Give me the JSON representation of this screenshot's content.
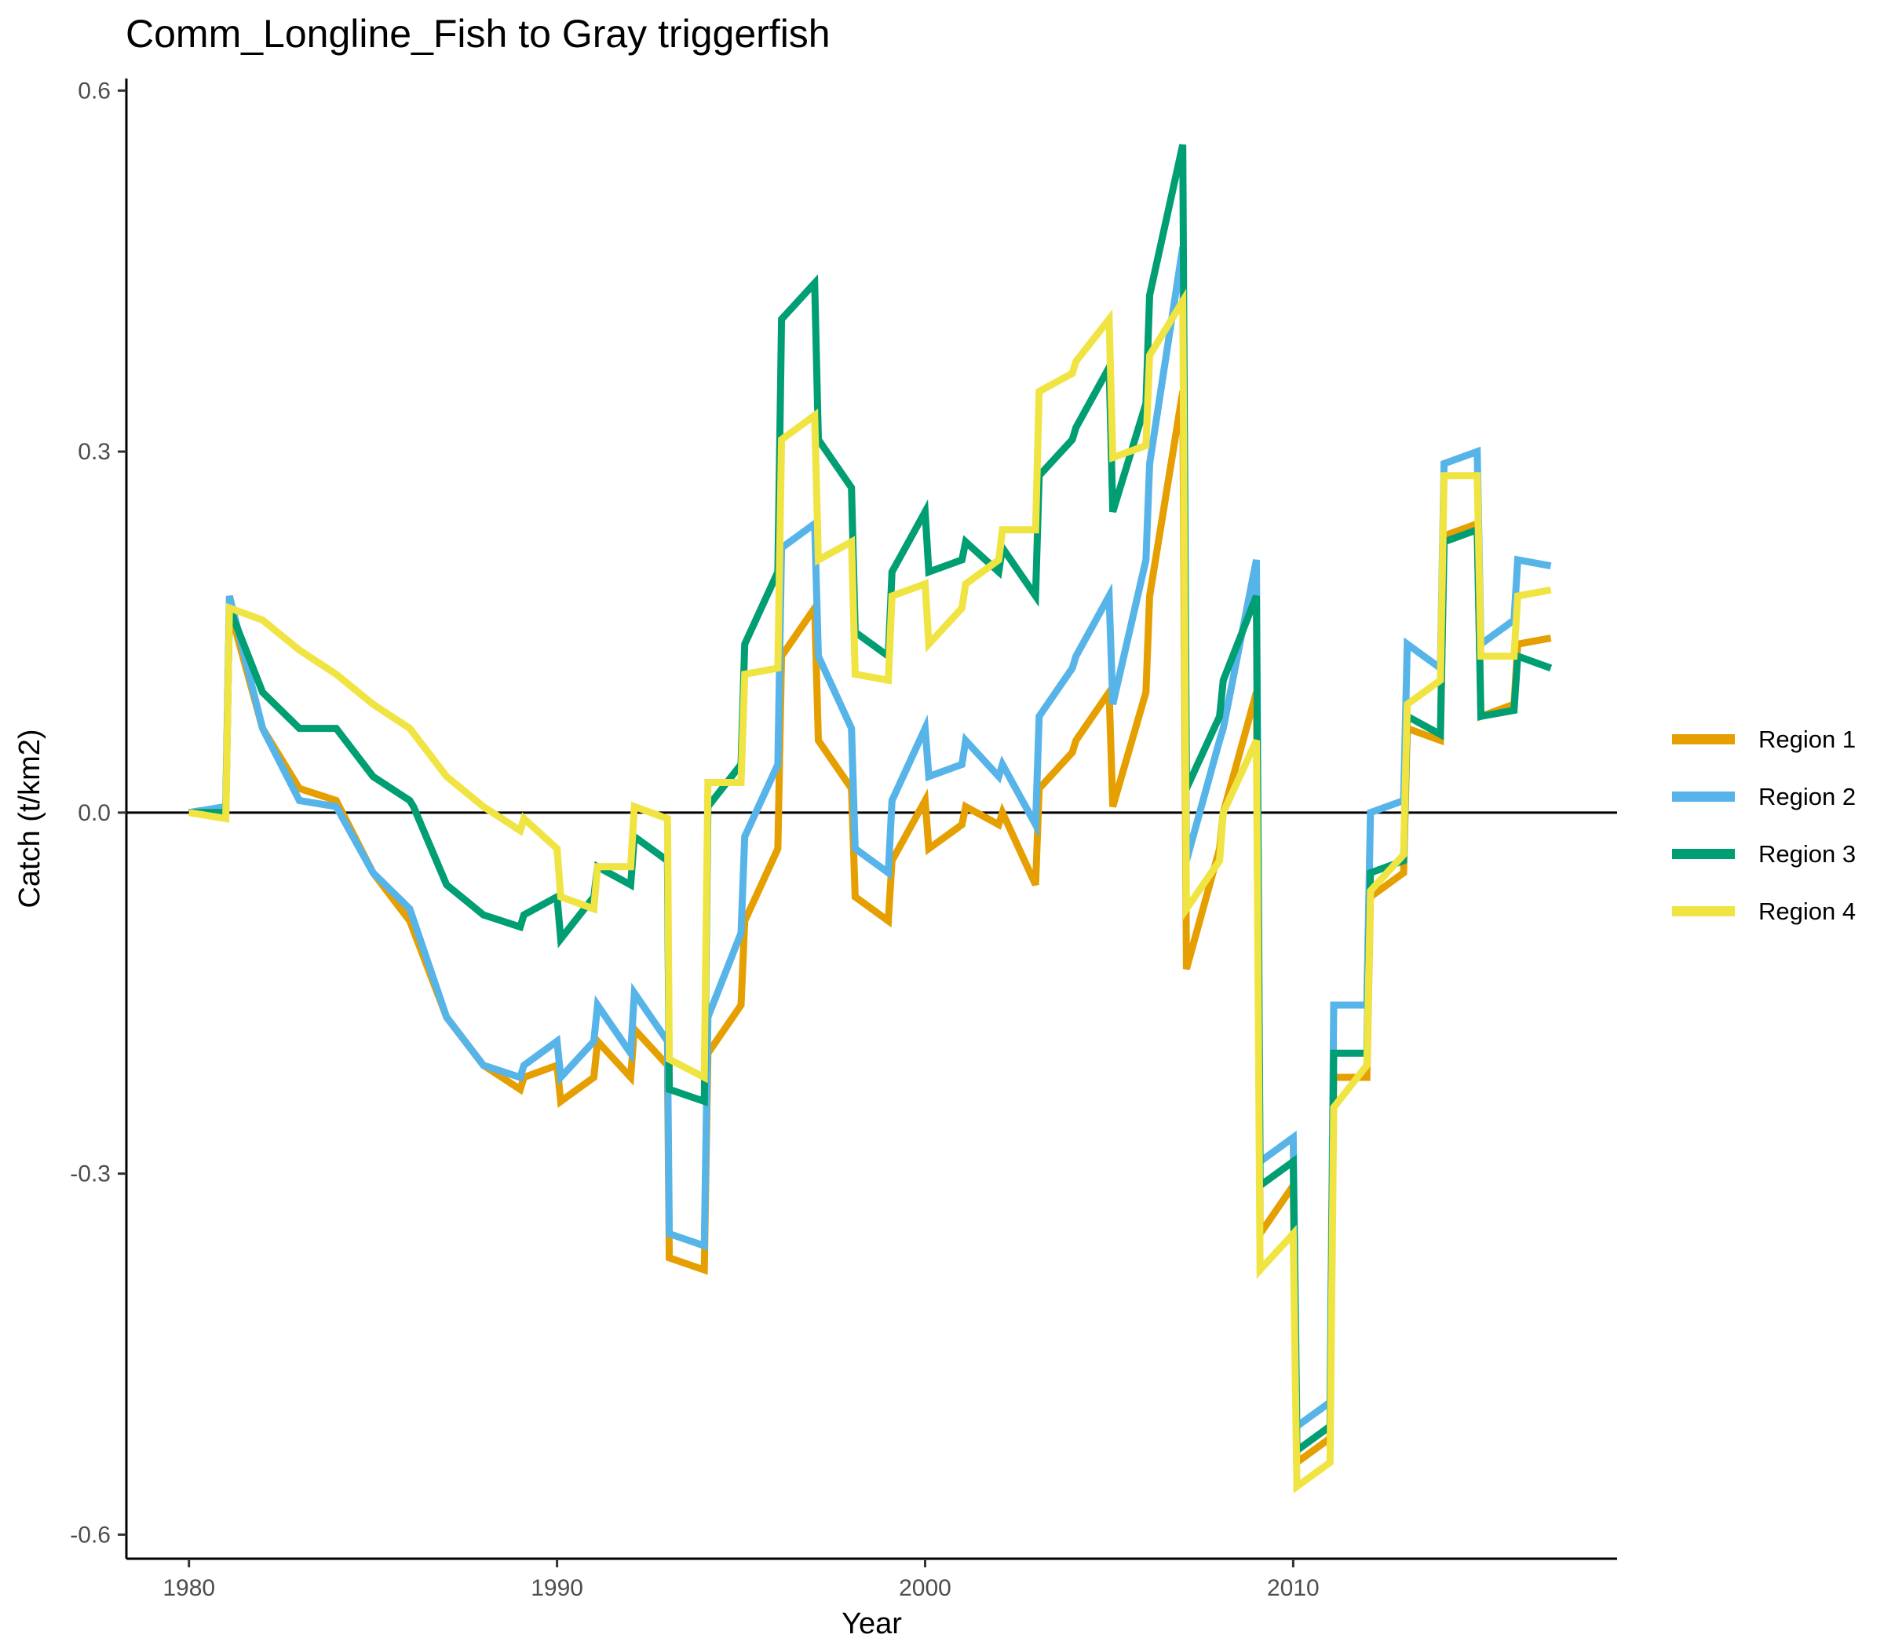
{
  "chart_data": {
    "type": "line",
    "title": "Comm_Longline_Fish to Gray triggerfish",
    "xlabel": "Year",
    "ylabel": "Catch (t/km2)",
    "xlim": [
      1978.3,
      2018.8
    ],
    "ylim": [
      -0.62,
      0.61
    ],
    "xticks": [
      1980,
      1990,
      2000,
      2010
    ],
    "xtick_labels": [
      "1980",
      "1990",
      "2000",
      "2010"
    ],
    "yticks": [
      -0.6,
      -0.3,
      0.0,
      0.3,
      0.6
    ],
    "ytick_labels": [
      "-0.6",
      "-0.3",
      "0.0",
      "0.3",
      "0.6"
    ],
    "zero_line": true,
    "grid": false,
    "legend_position": "right",
    "series": [
      {
        "name": "Region 1",
        "color": "#E69F00",
        "points": [
          [
            1980,
            0
          ],
          [
            1981,
            0
          ],
          [
            1981.1,
            0.17
          ],
          [
            1982,
            0.07
          ],
          [
            1983,
            0.02
          ],
          [
            1984,
            0.01
          ],
          [
            1985,
            -0.05
          ],
          [
            1986,
            -0.09
          ],
          [
            1987,
            -0.17
          ],
          [
            1988,
            -0.21
          ],
          [
            1989,
            -0.23
          ],
          [
            1989.1,
            -0.22
          ],
          [
            1990,
            -0.21
          ],
          [
            1990.1,
            -0.24
          ],
          [
            1991,
            -0.22
          ],
          [
            1991.1,
            -0.19
          ],
          [
            1992,
            -0.22
          ],
          [
            1992.1,
            -0.18
          ],
          [
            1993,
            -0.21
          ],
          [
            1993.05,
            -0.37
          ],
          [
            1994,
            -0.38
          ],
          [
            1994.1,
            -0.2
          ],
          [
            1995,
            -0.16
          ],
          [
            1995.1,
            -0.09
          ],
          [
            1996,
            -0.03
          ],
          [
            1996.1,
            0.13
          ],
          [
            1997,
            0.17
          ],
          [
            1997.1,
            0.06
          ],
          [
            1998,
            0.02
          ],
          [
            1998.1,
            -0.07
          ],
          [
            1999,
            -0.09
          ],
          [
            1999.1,
            -0.04
          ],
          [
            2000,
            0.01
          ],
          [
            2000.1,
            -0.03
          ],
          [
            2001,
            -0.01
          ],
          [
            2001.1,
            0.005
          ],
          [
            2002,
            -0.01
          ],
          [
            2002.1,
            0
          ],
          [
            2003,
            -0.06
          ],
          [
            2003.1,
            0.02
          ],
          [
            2004,
            0.05
          ],
          [
            2004.1,
            0.06
          ],
          [
            2005,
            0.1
          ],
          [
            2005.1,
            0.005
          ],
          [
            2006,
            0.1
          ],
          [
            2006.1,
            0.18
          ],
          [
            2007,
            0.35
          ],
          [
            2007.1,
            -0.13
          ],
          [
            2008,
            -0.03
          ],
          [
            2008.1,
            0
          ],
          [
            2009,
            0.1
          ],
          [
            2009.1,
            -0.35
          ],
          [
            2010,
            -0.31
          ],
          [
            2010.1,
            -0.54
          ],
          [
            2011,
            -0.52
          ],
          [
            2011.1,
            -0.22
          ],
          [
            2012,
            -0.22
          ],
          [
            2012.1,
            -0.07
          ],
          [
            2013,
            -0.05
          ],
          [
            2013.1,
            0.07
          ],
          [
            2014,
            0.06
          ],
          [
            2014.1,
            0.23
          ],
          [
            2015,
            0.24
          ],
          [
            2015.1,
            0.08
          ],
          [
            2016,
            0.09
          ],
          [
            2016.1,
            0.14
          ],
          [
            2017,
            0.145
          ]
        ]
      },
      {
        "name": "Region 2",
        "color": "#56B4E9",
        "points": [
          [
            1980,
            0
          ],
          [
            1981,
            0.005
          ],
          [
            1981.1,
            0.18
          ],
          [
            1982,
            0.07
          ],
          [
            1983,
            0.01
          ],
          [
            1984,
            0.005
          ],
          [
            1985,
            -0.05
          ],
          [
            1986,
            -0.08
          ],
          [
            1987,
            -0.17
          ],
          [
            1988,
            -0.21
          ],
          [
            1989,
            -0.22
          ],
          [
            1989.1,
            -0.21
          ],
          [
            1990,
            -0.19
          ],
          [
            1990.1,
            -0.22
          ],
          [
            1991,
            -0.19
          ],
          [
            1991.1,
            -0.16
          ],
          [
            1992,
            -0.2
          ],
          [
            1992.1,
            -0.15
          ],
          [
            1993,
            -0.19
          ],
          [
            1993.05,
            -0.35
          ],
          [
            1994,
            -0.36
          ],
          [
            1994.1,
            -0.17
          ],
          [
            1995,
            -0.1
          ],
          [
            1995.1,
            -0.02
          ],
          [
            1996,
            0.04
          ],
          [
            1996.1,
            0.22
          ],
          [
            1997,
            0.24
          ],
          [
            1997.1,
            0.13
          ],
          [
            1998,
            0.07
          ],
          [
            1998.1,
            -0.03
          ],
          [
            1999,
            -0.05
          ],
          [
            1999.1,
            0.01
          ],
          [
            2000,
            0.07
          ],
          [
            2000.1,
            0.03
          ],
          [
            2001,
            0.04
          ],
          [
            2001.1,
            0.06
          ],
          [
            2002,
            0.03
          ],
          [
            2002.1,
            0.04
          ],
          [
            2003,
            -0.01
          ],
          [
            2003.1,
            0.08
          ],
          [
            2004,
            0.12
          ],
          [
            2004.1,
            0.13
          ],
          [
            2005,
            0.18
          ],
          [
            2005.1,
            0.09
          ],
          [
            2006,
            0.21
          ],
          [
            2006.1,
            0.29
          ],
          [
            2007,
            0.47
          ],
          [
            2007.1,
            -0.04
          ],
          [
            2008,
            0.06
          ],
          [
            2008.1,
            0.07
          ],
          [
            2009,
            0.21
          ],
          [
            2009.1,
            -0.29
          ],
          [
            2010,
            -0.27
          ],
          [
            2010.1,
            -0.51
          ],
          [
            2011,
            -0.49
          ],
          [
            2011.1,
            -0.16
          ],
          [
            2012,
            -0.16
          ],
          [
            2012.1,
            0
          ],
          [
            2013,
            0.01
          ],
          [
            2013.1,
            0.14
          ],
          [
            2014,
            0.12
          ],
          [
            2014.1,
            0.29
          ],
          [
            2015,
            0.3
          ],
          [
            2015.1,
            0.14
          ],
          [
            2016,
            0.16
          ],
          [
            2016.1,
            0.21
          ],
          [
            2017,
            0.205
          ]
        ]
      },
      {
        "name": "Region 3",
        "color": "#009E73",
        "points": [
          [
            1980,
            0
          ],
          [
            1981,
            0
          ],
          [
            1981.1,
            0.17
          ],
          [
            1982,
            0.1
          ],
          [
            1983,
            0.07
          ],
          [
            1984,
            0.07
          ],
          [
            1985,
            0.03
          ],
          [
            1986,
            0.01
          ],
          [
            1986.1,
            0.005
          ],
          [
            1987,
            -0.06
          ],
          [
            1988,
            -0.085
          ],
          [
            1989,
            -0.095
          ],
          [
            1989.1,
            -0.085
          ],
          [
            1990,
            -0.07
          ],
          [
            1990.1,
            -0.105
          ],
          [
            1991,
            -0.07
          ],
          [
            1991.1,
            -0.045
          ],
          [
            1992,
            -0.06
          ],
          [
            1992.1,
            -0.02
          ],
          [
            1993,
            -0.04
          ],
          [
            1993.05,
            -0.23
          ],
          [
            1994,
            -0.24
          ],
          [
            1994.1,
            0.005
          ],
          [
            1995,
            0.04
          ],
          [
            1995.1,
            0.14
          ],
          [
            1996,
            0.2
          ],
          [
            1996.1,
            0.41
          ],
          [
            1997,
            0.44
          ],
          [
            1997.1,
            0.31
          ],
          [
            1998,
            0.27
          ],
          [
            1998.1,
            0.15
          ],
          [
            1999,
            0.13
          ],
          [
            1999.1,
            0.2
          ],
          [
            2000,
            0.25
          ],
          [
            2000.1,
            0.2
          ],
          [
            2001,
            0.21
          ],
          [
            2001.1,
            0.225
          ],
          [
            2002,
            0.2
          ],
          [
            2002.1,
            0.22
          ],
          [
            2003,
            0.18
          ],
          [
            2003.1,
            0.28
          ],
          [
            2004,
            0.31
          ],
          [
            2004.1,
            0.32
          ],
          [
            2005,
            0.37
          ],
          [
            2005.1,
            0.25
          ],
          [
            2006,
            0.34
          ],
          [
            2006.1,
            0.43
          ],
          [
            2007,
            0.555
          ],
          [
            2007.1,
            0.02
          ],
          [
            2008,
            0.08
          ],
          [
            2008.1,
            0.11
          ],
          [
            2009,
            0.18
          ],
          [
            2009.1,
            -0.31
          ],
          [
            2010,
            -0.29
          ],
          [
            2010.1,
            -0.53
          ],
          [
            2011,
            -0.51
          ],
          [
            2011.1,
            -0.2
          ],
          [
            2012,
            -0.2
          ],
          [
            2012.1,
            -0.05
          ],
          [
            2013,
            -0.04
          ],
          [
            2013.1,
            0.08
          ],
          [
            2014,
            0.065
          ],
          [
            2014.1,
            0.225
          ],
          [
            2015,
            0.235
          ],
          [
            2015.1,
            0.08
          ],
          [
            2016,
            0.085
          ],
          [
            2016.1,
            0.13
          ],
          [
            2017,
            0.12
          ]
        ]
      },
      {
        "name": "Region 4",
        "color": "#F0E442",
        "points": [
          [
            1980,
            0
          ],
          [
            1981,
            -0.005
          ],
          [
            1981.1,
            0.17
          ],
          [
            1982,
            0.16
          ],
          [
            1983,
            0.135
          ],
          [
            1984,
            0.115
          ],
          [
            1985,
            0.09
          ],
          [
            1986,
            0.07
          ],
          [
            1987,
            0.03
          ],
          [
            1988,
            0.005
          ],
          [
            1989,
            -0.015
          ],
          [
            1989.1,
            -0.005
          ],
          [
            1990,
            -0.03
          ],
          [
            1990.1,
            -0.07
          ],
          [
            1991,
            -0.08
          ],
          [
            1991.1,
            -0.045
          ],
          [
            1992,
            -0.045
          ],
          [
            1992.1,
            0.005
          ],
          [
            1993,
            -0.005
          ],
          [
            1993.05,
            -0.205
          ],
          [
            1994,
            -0.22
          ],
          [
            1994.1,
            0.025
          ],
          [
            1995,
            0.025
          ],
          [
            1995.1,
            0.115
          ],
          [
            1996,
            0.12
          ],
          [
            1996.1,
            0.31
          ],
          [
            1997,
            0.33
          ],
          [
            1997.1,
            0.21
          ],
          [
            1998,
            0.225
          ],
          [
            1998.1,
            0.115
          ],
          [
            1999,
            0.11
          ],
          [
            1999.1,
            0.18
          ],
          [
            2000,
            0.19
          ],
          [
            2000.1,
            0.14
          ],
          [
            2001,
            0.17
          ],
          [
            2001.1,
            0.19
          ],
          [
            2002,
            0.21
          ],
          [
            2002.1,
            0.235
          ],
          [
            2003,
            0.235
          ],
          [
            2003.1,
            0.35
          ],
          [
            2004,
            0.365
          ],
          [
            2004.1,
            0.375
          ],
          [
            2005,
            0.41
          ],
          [
            2005.1,
            0.295
          ],
          [
            2006,
            0.305
          ],
          [
            2006.1,
            0.38
          ],
          [
            2007,
            0.425
          ],
          [
            2007.1,
            -0.08
          ],
          [
            2008,
            -0.04
          ],
          [
            2008.1,
            0
          ],
          [
            2009,
            0.06
          ],
          [
            2009.1,
            -0.38
          ],
          [
            2010,
            -0.35
          ],
          [
            2010.1,
            -0.56
          ],
          [
            2011,
            -0.54
          ],
          [
            2011.1,
            -0.245
          ],
          [
            2012,
            -0.21
          ],
          [
            2012.1,
            -0.065
          ],
          [
            2013,
            -0.035
          ],
          [
            2013.1,
            0.09
          ],
          [
            2014,
            0.11
          ],
          [
            2014.1,
            0.28
          ],
          [
            2015,
            0.28
          ],
          [
            2015.1,
            0.13
          ],
          [
            2016,
            0.13
          ],
          [
            2016.1,
            0.18
          ],
          [
            2017,
            0.185
          ]
        ]
      }
    ]
  }
}
